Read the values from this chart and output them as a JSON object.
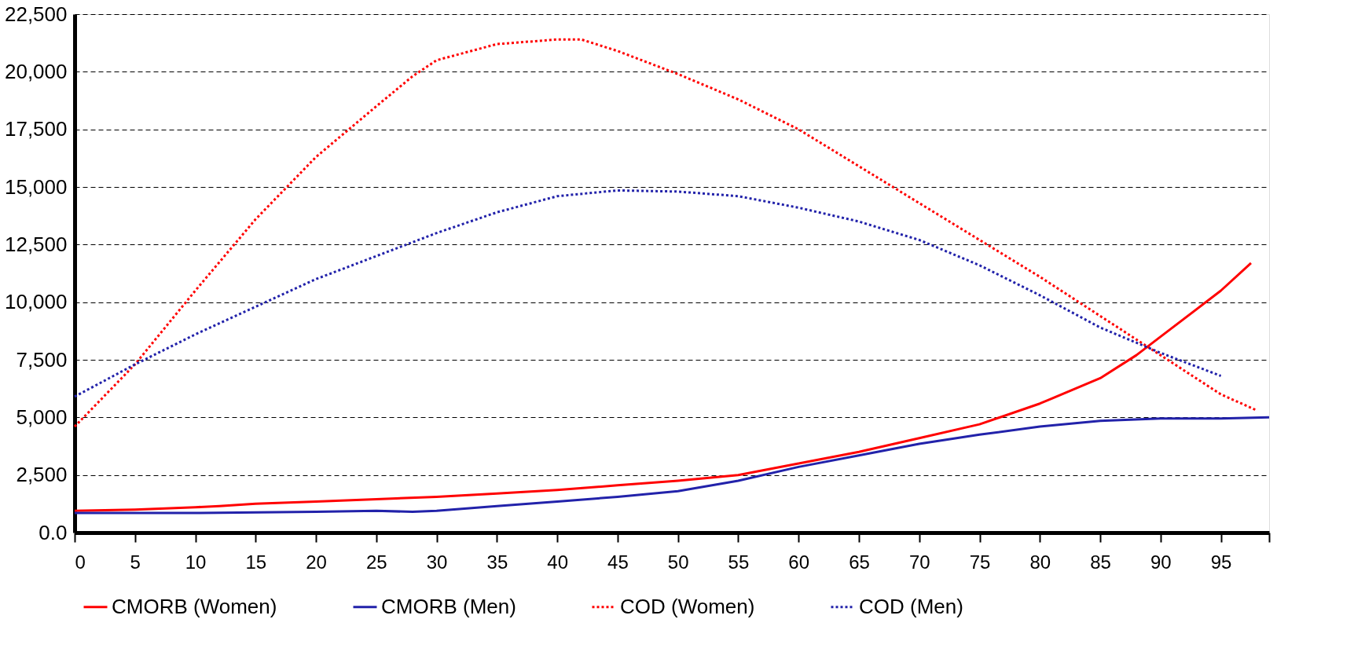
{
  "chart_data": {
    "type": "line",
    "xlim": [
      0,
      99
    ],
    "xticks": [
      0,
      5,
      10,
      15,
      20,
      25,
      30,
      35,
      40,
      45,
      50,
      55,
      60,
      65,
      70,
      75,
      80,
      85,
      90,
      95,
      {
        "value": 99,
        "label": null
      }
    ],
    "ylim": [
      0,
      22500
    ],
    "yticks": [
      {
        "value": 0,
        "label": "0.0"
      },
      {
        "value": 2500,
        "label": "2,500"
      },
      {
        "value": 5000,
        "label": "5,000"
      },
      {
        "value": 7500,
        "label": "7,500"
      },
      {
        "value": 10000,
        "label": "10,000"
      },
      {
        "value": 12500,
        "label": "12,500"
      },
      {
        "value": 15000,
        "label": "15,000"
      },
      {
        "value": 17500,
        "label": "17,500"
      },
      {
        "value": 20000,
        "label": "20,000"
      },
      {
        "value": 22500,
        "label": "22,500"
      }
    ],
    "grid": "y",
    "legend": "bottom",
    "marker": "none",
    "series": [
      {
        "name": "CMORB (Women)",
        "color": "#ff0000",
        "line_style": "solid",
        "x": [
          0,
          5,
          10,
          12,
          15,
          20,
          25,
          30,
          35,
          40,
          45,
          50,
          55,
          60,
          65,
          70,
          75,
          80,
          85,
          88,
          90,
          95,
          97.5
        ],
        "values": [
          950,
          1000,
          1100,
          1150,
          1250,
          1350,
          1450,
          1550,
          1700,
          1850,
          2050,
          2250,
          2500,
          3000,
          3500,
          4100,
          4700,
          5600,
          6700,
          7700,
          8500,
          10500,
          11700
        ]
      },
      {
        "name": "CMORB (Men)",
        "color": "#2222aa",
        "line_style": "solid",
        "x": [
          0,
          10,
          20,
          25,
          28,
          30,
          35,
          40,
          45,
          50,
          55,
          60,
          65,
          70,
          75,
          80,
          85,
          90,
          95,
          99
        ],
        "values": [
          850,
          850,
          900,
          950,
          900,
          950,
          1150,
          1350,
          1550,
          1800,
          2250,
          2850,
          3350,
          3850,
          4250,
          4600,
          4850,
          4950,
          4950,
          5000
        ]
      },
      {
        "name": "COD (Women)",
        "color": "#ff0000",
        "line_style": "dotted",
        "x": [
          0,
          5,
          10,
          15,
          20,
          25,
          28,
          30,
          35,
          40,
          42,
          45,
          50,
          55,
          60,
          65,
          70,
          75,
          80,
          85,
          90,
          95,
          98
        ],
        "values": [
          4600,
          7300,
          10500,
          13600,
          16300,
          18500,
          19800,
          20500,
          21200,
          21400,
          21400,
          20900,
          19900,
          18800,
          17500,
          15900,
          14300,
          12700,
          11100,
          9400,
          7700,
          6000,
          5300
        ]
      },
      {
        "name": "COD (Men)",
        "color": "#2222aa",
        "line_style": "dotted",
        "x": [
          0,
          5,
          10,
          15,
          20,
          25,
          30,
          35,
          40,
          45,
          50,
          55,
          60,
          65,
          70,
          75,
          80,
          85,
          90,
          95
        ],
        "values": [
          5900,
          7300,
          8600,
          9800,
          11000,
          12000,
          13000,
          13900,
          14600,
          14850,
          14800,
          14600,
          14100,
          13500,
          12700,
          11600,
          10300,
          8900,
          7800,
          6800
        ]
      }
    ]
  }
}
